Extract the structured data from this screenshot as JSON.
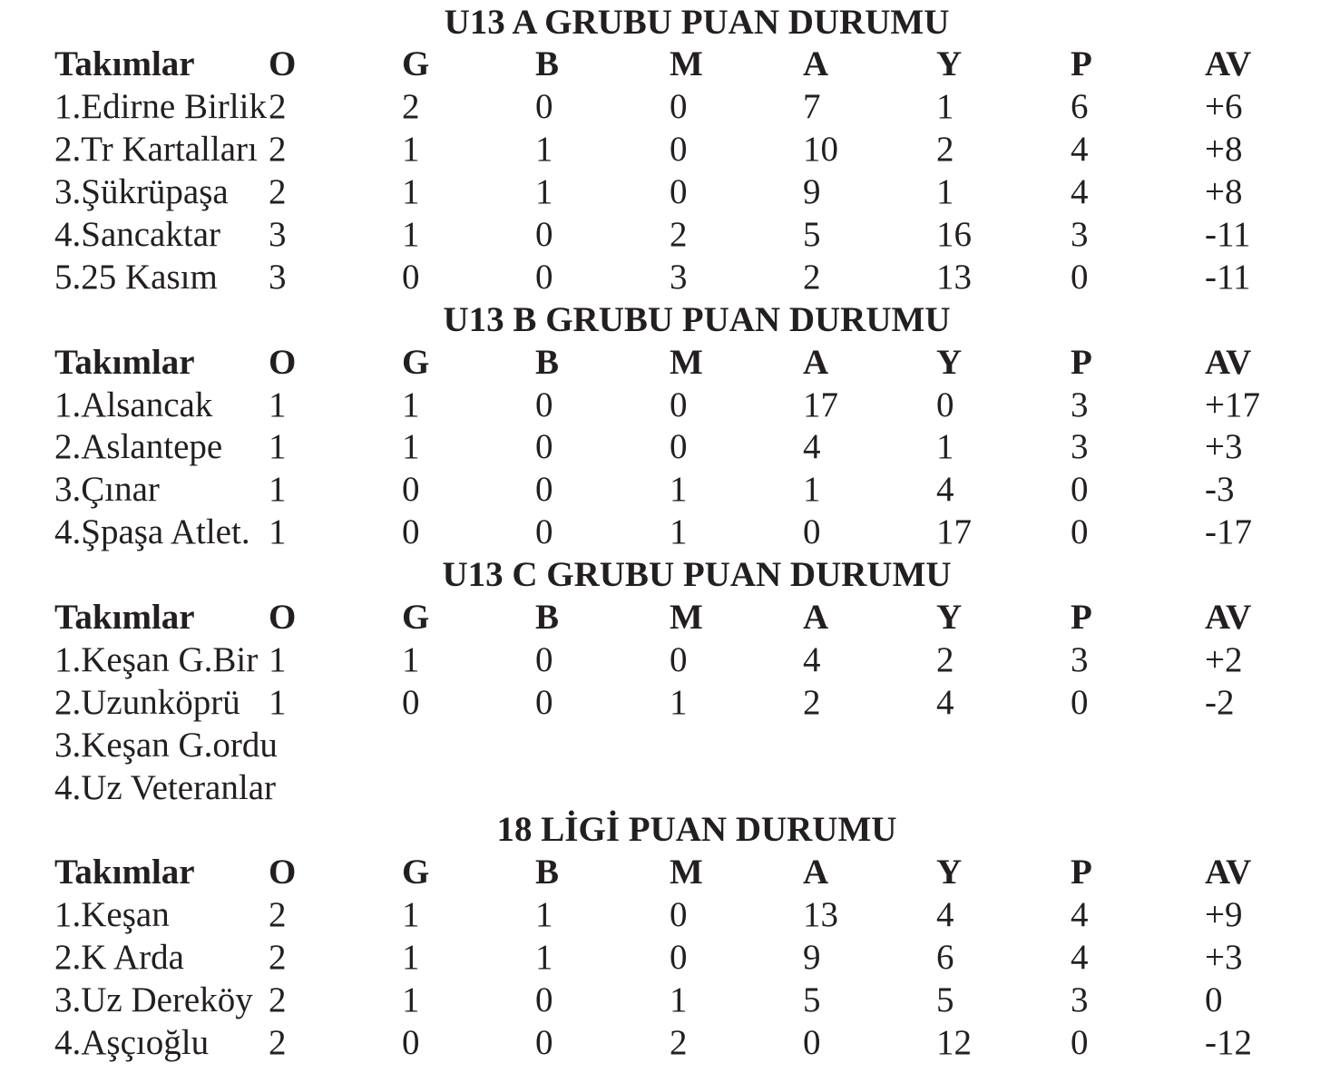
{
  "columns": [
    "Takımlar",
    "O",
    "G",
    "B",
    "M",
    "A",
    "Y",
    "P",
    "AV"
  ],
  "groups": [
    {
      "title": "U13 A GRUBU PUAN DURUMU",
      "rows": [
        [
          "1.Edirne Birlik",
          "2",
          "2",
          "0",
          "0",
          "7",
          "1",
          "6",
          "+6"
        ],
        [
          "2.Tr Kartalları",
          "2",
          "1",
          "1",
          "0",
          "10",
          "2",
          "4",
          "+8"
        ],
        [
          "3.Şükrüpaşa",
          "2",
          "1",
          "1",
          "0",
          "9",
          "1",
          "4",
          "+8"
        ],
        [
          "4.Sancaktar",
          "3",
          "1",
          "0",
          "2",
          "5",
          "16",
          "3",
          "-11"
        ],
        [
          "5.25 Kasım",
          "3",
          "0",
          "0",
          "3",
          "2",
          "13",
          "0",
          "-11"
        ]
      ]
    },
    {
      "title": "U13 B GRUBU PUAN DURUMU",
      "rows": [
        [
          "1.Alsancak",
          "1",
          "1",
          "0",
          "0",
          "17",
          "0",
          "3",
          "+17"
        ],
        [
          "2.Aslantepe",
          "1",
          "1",
          "0",
          "0",
          "4",
          "1",
          "3",
          "+3"
        ],
        [
          "3.Çınar",
          "1",
          "0",
          "0",
          "1",
          "1",
          "4",
          "0",
          "-3"
        ],
        [
          "4.Şpaşa Atlet.",
          "1",
          "0",
          "0",
          "1",
          "0",
          "17",
          "0",
          "-17"
        ]
      ]
    },
    {
      "title": "U13 C GRUBU PUAN DURUMU",
      "rows": [
        [
          "1.Keşan G.Bir",
          "1",
          "1",
          "0",
          "0",
          "4",
          "2",
          "3",
          "+2"
        ],
        [
          "2.Uzunköprü",
          "1",
          "0",
          "0",
          "1",
          "2",
          "4",
          "0",
          "-2"
        ],
        [
          "3.Keşan G.ordu",
          "",
          "",
          "",
          "",
          "",
          "",
          "",
          ""
        ],
        [
          "4.Uz Veteranlar",
          "",
          "",
          "",
          "",
          "",
          "",
          "",
          ""
        ]
      ]
    },
    {
      "title": "18 LİGİ PUAN DURUMU",
      "rows": [
        [
          "1.Keşan",
          "2",
          "1",
          "1",
          "0",
          "13",
          "4",
          "4",
          "+9"
        ],
        [
          "2.K Arda",
          "2",
          "1",
          "1",
          "0",
          "9",
          "6",
          "4",
          "+3"
        ],
        [
          "3.Uz Dereköy",
          "2",
          "1",
          "0",
          "1",
          "5",
          "5",
          "3",
          "0"
        ],
        [
          "4.Aşçıoğlu",
          "2",
          "0",
          "0",
          "2",
          "0",
          "12",
          "0",
          "-12"
        ]
      ]
    }
  ]
}
